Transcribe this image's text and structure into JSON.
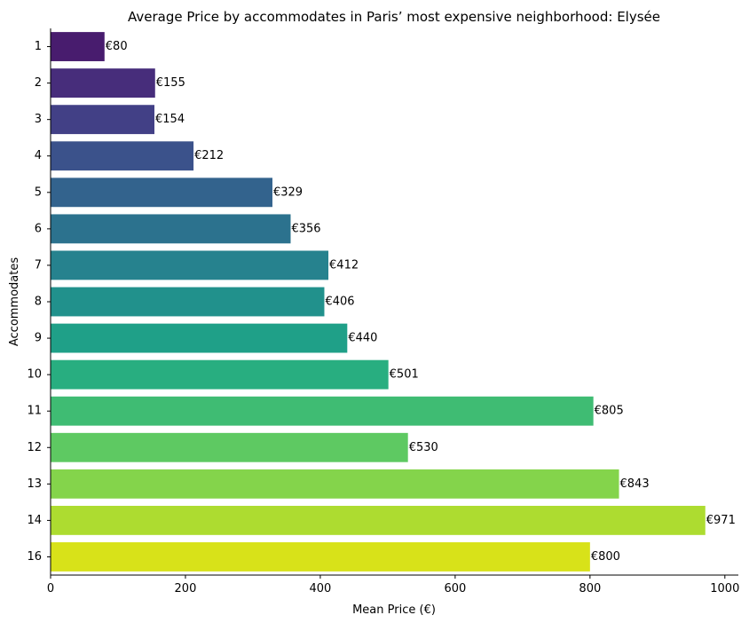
{
  "chart_data": {
    "type": "bar",
    "orientation": "horizontal",
    "title": "Average Price by accommodates in Paris’ most expensive neighborhood: Elysée",
    "xlabel": "Mean Price (€)",
    "ylabel": "Accommodates",
    "xlim": [
      0,
      1020
    ],
    "xticks": [
      0,
      200,
      400,
      600,
      800,
      1000
    ],
    "grid": false,
    "legend": "none",
    "categories": [
      "1",
      "2",
      "3",
      "4",
      "5",
      "6",
      "7",
      "8",
      "9",
      "10",
      "11",
      "12",
      "13",
      "14",
      "16"
    ],
    "values": [
      80,
      155,
      154,
      212,
      329,
      356,
      412,
      406,
      440,
      501,
      805,
      530,
      843,
      971,
      800
    ],
    "value_labels": [
      "€80",
      "€155",
      "€154",
      "€212",
      "€329",
      "€356",
      "€412",
      "€406",
      "€440",
      "€501",
      "€805",
      "€530",
      "€843",
      "€971",
      "€800"
    ],
    "palette": "viridis",
    "colors": [
      "#481c6e",
      "#472d7b",
      "#424086",
      "#3b528b",
      "#33638d",
      "#2c728e",
      "#26828e",
      "#21918c",
      "#1fa088",
      "#28ae80",
      "#3fbc73",
      "#5ec962",
      "#84d44b",
      "#addc30",
      "#d8e219"
    ]
  }
}
